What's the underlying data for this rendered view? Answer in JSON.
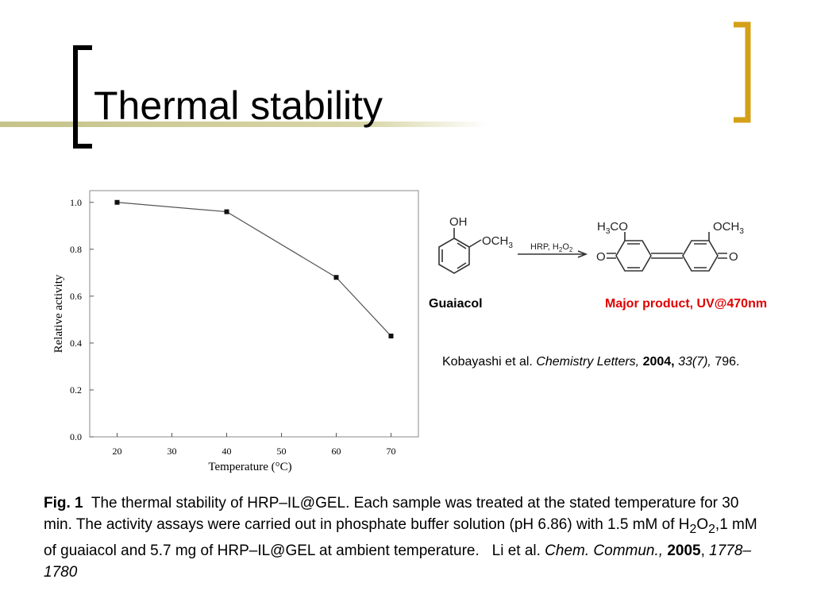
{
  "title": "Thermal stability",
  "chart_data": {
    "type": "line",
    "x_label": "Temperature (°C)",
    "y_label": "Relative activity",
    "x": [
      20,
      40,
      60,
      70
    ],
    "values": [
      1.0,
      0.96,
      0.68,
      0.43
    ],
    "color": "#555555",
    "marker_color": "#111111",
    "xlim": [
      15,
      75
    ],
    "xticks": [
      20,
      30,
      40,
      50,
      60,
      70
    ],
    "ylim": [
      0,
      1.05
    ],
    "yticks": [
      {
        "value": 0,
        "label": "0.0"
      },
      0.2,
      0.4,
      0.6,
      0.8,
      {
        "value": 1,
        "label": "1.0"
      }
    ],
    "grid": false
  },
  "scheme": {
    "oh": "OH",
    "methoxy": [
      "OCH",
      "3"
    ],
    "reagent": [
      "HRP, H",
      "2",
      "O",
      "2"
    ],
    "product_left": [
      "H",
      "3",
      "CO"
    ],
    "product_right": [
      "OCH",
      "3"
    ],
    "oxo_left": "O",
    "oxo_right": "O",
    "reactant_label": "Guaiacol",
    "product_label": "Major product, UV@470nm"
  },
  "reference": [
    "Kobayashi et al.",
    "Chemistry Letters,",
    "2004,",
    "33(7),",
    "796."
  ],
  "caption": [
    "Fig. 1",
    "The thermal stability of HRP–IL@GEL. Each sample was treated at the stated temperature for 30 min. The activity assays were carried out in phosphate buffer solution (pH 6.86) with 1.5 mM of H",
    "2",
    "O",
    "2",
    ",1 mM of guaiacol and 5.7 mg of HRP–IL@GEL at ambient temperature.",
    "Li et al.",
    "Chem. Commun.,",
    "2005",
    ",",
    "1778–1780"
  ]
}
